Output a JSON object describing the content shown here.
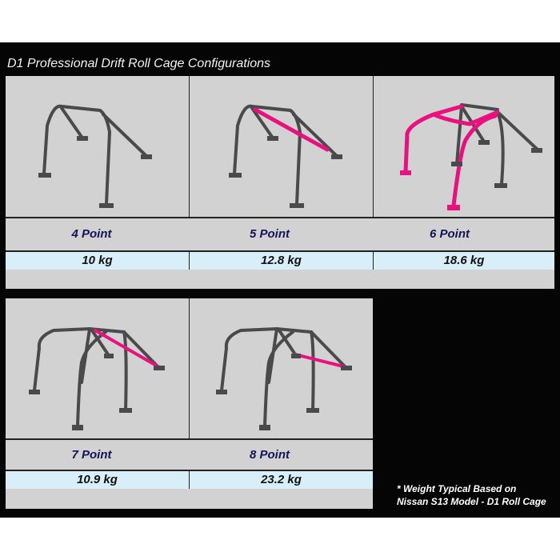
{
  "title": "D1 Professional Drift Roll Cage Configurations",
  "colors": {
    "tube": "#4a4a4a",
    "highlight": "#e8117f",
    "label": "#14145a",
    "weight_bg": "#d8eef8",
    "panel": "#d2d2d2"
  },
  "configs": [
    {
      "label": "4 Point",
      "weight": "10 kg"
    },
    {
      "label": "5 Point",
      "weight": "12.8 kg"
    },
    {
      "label": "6 Point",
      "weight": "18.6 kg"
    },
    {
      "label": "7 Point",
      "weight": "10.9 kg"
    },
    {
      "label": "8 Point",
      "weight": "23.2 kg"
    }
  ],
  "footnote": {
    "line1": "* Weight Typical Based on",
    "line2": "Nissan S13 Model - D1 Roll Cage"
  }
}
